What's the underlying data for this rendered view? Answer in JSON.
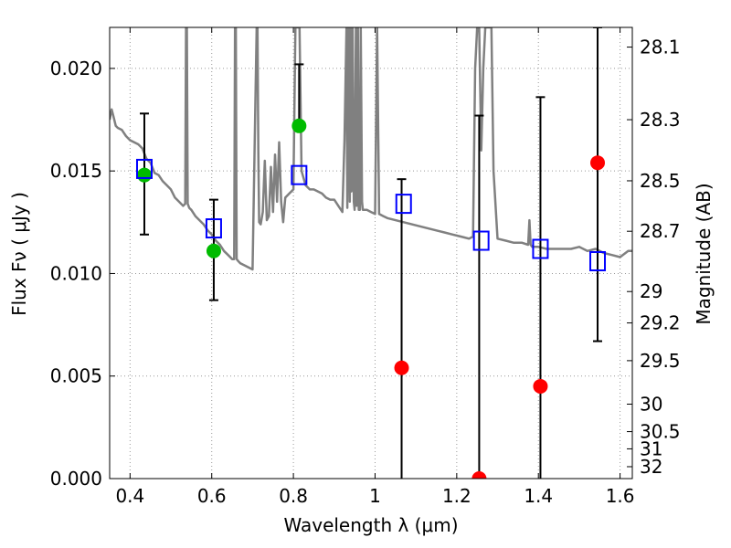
{
  "chart_data": {
    "type": "scatter",
    "title": "",
    "xlabel": "Wavelength  λ (μm)",
    "ylabel": "Flux  Fν  ( μJy )",
    "ylabel_right": "Magnitude (AB)",
    "xlim": [
      0.35,
      1.63
    ],
    "ylim": [
      0.0,
      0.022
    ],
    "grid": true,
    "grid_style": "dotted",
    "x_ticks": [
      {
        "value": 0.4,
        "label": "0.4"
      },
      {
        "value": 0.6,
        "label": "0.6"
      },
      {
        "value": 0.8,
        "label": "0.8"
      },
      {
        "value": 1.0,
        "label": "1"
      },
      {
        "value": 1.2,
        "label": "1.2"
      },
      {
        "value": 1.4,
        "label": "1.4"
      },
      {
        "value": 1.6,
        "label": "1.6"
      }
    ],
    "y_ticks": [
      {
        "value": 0.0,
        "label": "0.000"
      },
      {
        "value": 0.005,
        "label": "0.005"
      },
      {
        "value": 0.01,
        "label": "0.010"
      },
      {
        "value": 0.015,
        "label": "0.015"
      },
      {
        "value": 0.02,
        "label": "0.020"
      }
    ],
    "right_ticks": [
      {
        "flux": 0.02104,
        "label": "28.1"
      },
      {
        "flux": 0.0175,
        "label": "28.3"
      },
      {
        "flux": 0.01452,
        "label": "28.5"
      },
      {
        "flux": 0.01206,
        "label": "28.7"
      },
      {
        "flux": 0.00912,
        "label": "29"
      },
      {
        "flux": 0.00759,
        "label": "29.2"
      },
      {
        "flux": 0.00575,
        "label": "29.5"
      },
      {
        "flux": 0.00363,
        "label": "30"
      },
      {
        "flux": 0.00229,
        "label": "30.5"
      },
      {
        "flux": 0.00145,
        "label": "31"
      },
      {
        "flux": 0.00058,
        "label": "32"
      }
    ],
    "colors": {
      "model": "#808080",
      "detection": "#00bb00",
      "nondetection": "#ff0000",
      "model_band": "#0000ff",
      "errorbar": "#000000",
      "grid": "#999999"
    },
    "model_sed": {
      "x": [
        0.35,
        0.355,
        0.36,
        0.365,
        0.37,
        0.38,
        0.39,
        0.4,
        0.41,
        0.42,
        0.43,
        0.44,
        0.45,
        0.46,
        0.47,
        0.48,
        0.49,
        0.5,
        0.51,
        0.52,
        0.53,
        0.535,
        0.537,
        0.539,
        0.541,
        0.545,
        0.55,
        0.56,
        0.57,
        0.58,
        0.59,
        0.6,
        0.61,
        0.62,
        0.63,
        0.64,
        0.65,
        0.655,
        0.657,
        0.659,
        0.661,
        0.665,
        0.67,
        0.68,
        0.69,
        0.7,
        0.705,
        0.71,
        0.712,
        0.714,
        0.716,
        0.72,
        0.725,
        0.73,
        0.735,
        0.74,
        0.745,
        0.75,
        0.755,
        0.76,
        0.765,
        0.77,
        0.775,
        0.78,
        0.79,
        0.8,
        0.805,
        0.81,
        0.815,
        0.82,
        0.83,
        0.84,
        0.85,
        0.86,
        0.87,
        0.88,
        0.89,
        0.9,
        0.91,
        0.92,
        0.925,
        0.93,
        0.932,
        0.935,
        0.938,
        0.94,
        0.942,
        0.945,
        0.948,
        0.95,
        0.953,
        0.955,
        0.958,
        0.96,
        0.963,
        0.965,
        0.968,
        0.97,
        0.975,
        0.98,
        0.99,
        1.0,
        1.005,
        1.01,
        1.02,
        1.03,
        1.05,
        1.07,
        1.09,
        1.11,
        1.13,
        1.15,
        1.17,
        1.19,
        1.21,
        1.23,
        1.24,
        1.245,
        1.25,
        1.255,
        1.26,
        1.265,
        1.27,
        1.275,
        1.28,
        1.285,
        1.29,
        1.3,
        1.32,
        1.34,
        1.36,
        1.375,
        1.378,
        1.381,
        1.385,
        1.4,
        1.42,
        1.44,
        1.46,
        1.48,
        1.5,
        1.52,
        1.54,
        1.56,
        1.58,
        1.6,
        1.62,
        1.63
      ],
      "y": [
        0.0175,
        0.018,
        0.0176,
        0.0172,
        0.0171,
        0.017,
        0.0167,
        0.0165,
        0.0164,
        0.0163,
        0.0161,
        0.0156,
        0.0154,
        0.0149,
        0.0148,
        0.0145,
        0.0143,
        0.0141,
        0.0137,
        0.0135,
        0.0133,
        0.0134,
        0.022,
        0.022,
        0.0134,
        0.0132,
        0.0131,
        0.0128,
        0.0126,
        0.0124,
        0.0121,
        0.0119,
        0.0116,
        0.0114,
        0.0111,
        0.0109,
        0.0107,
        0.0107,
        0.022,
        0.022,
        0.0107,
        0.0106,
        0.0105,
        0.0104,
        0.0103,
        0.0102,
        0.016,
        0.022,
        0.022,
        0.016,
        0.0125,
        0.0124,
        0.013,
        0.0155,
        0.0126,
        0.0128,
        0.0152,
        0.013,
        0.0158,
        0.0135,
        0.0164,
        0.0135,
        0.0125,
        0.0137,
        0.0139,
        0.0141,
        0.022,
        0.022,
        0.022,
        0.015,
        0.0143,
        0.0141,
        0.0141,
        0.014,
        0.0139,
        0.0137,
        0.0136,
        0.0136,
        0.0133,
        0.013,
        0.0165,
        0.022,
        0.0132,
        0.022,
        0.0135,
        0.022,
        0.014,
        0.022,
        0.0135,
        0.0131,
        0.022,
        0.0133,
        0.022,
        0.0131,
        0.0131,
        0.022,
        0.0135,
        0.0131,
        0.0131,
        0.0131,
        0.013,
        0.0129,
        0.022,
        0.0129,
        0.0128,
        0.0127,
        0.0126,
        0.0125,
        0.0124,
        0.0123,
        0.0122,
        0.0121,
        0.012,
        0.0119,
        0.0118,
        0.0117,
        0.0118,
        0.02,
        0.022,
        0.022,
        0.016,
        0.02,
        0.022,
        0.022,
        0.022,
        0.022,
        0.015,
        0.0117,
        0.0116,
        0.0115,
        0.0115,
        0.0114,
        0.0126,
        0.0114,
        0.0113,
        0.0113,
        0.0112,
        0.0112,
        0.0112,
        0.0112,
        0.0113,
        0.0111,
        0.0112,
        0.011,
        0.0109,
        0.0108,
        0.0111,
        0.0111
      ]
    },
    "series": [
      {
        "marker": "circle-green",
        "x": [
          0.435,
          0.605,
          0.814
        ],
        "y": [
          0.0148,
          0.0111,
          0.0172
        ],
        "yerr_low": [
          0.0119,
          0.0087,
          null
        ],
        "yerr_high": [
          0.0178,
          0.0136,
          0.0202
        ]
      },
      {
        "marker": "circle-red",
        "x": [
          1.065,
          1.255,
          1.405,
          1.545
        ],
        "y": [
          0.0054,
          0.0,
          0.0045,
          0.0154
        ],
        "yerr_low": [
          0.0,
          0.0,
          0.0,
          0.0067
        ],
        "yerr_high": [
          0.0146,
          0.0177,
          0.0186,
          0.022
        ]
      },
      {
        "marker": "square-blue-open",
        "x": [
          0.435,
          0.605,
          0.814,
          1.07,
          1.26,
          1.405,
          1.545
        ],
        "y": [
          0.0151,
          0.0122,
          0.0148,
          0.0134,
          0.0116,
          0.0112,
          0.0106
        ]
      }
    ]
  }
}
